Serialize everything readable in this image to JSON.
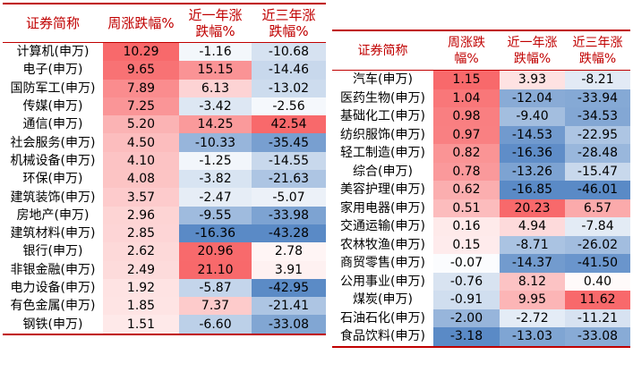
{
  "left_table": {
    "headers": [
      "证券简称",
      "周涨跌幅%",
      "近一年涨\n跌幅%",
      "近三年涨\n跌幅%"
    ],
    "rows": [
      [
        "计算机(申万)",
        "10.29",
        "-1.16",
        "-10.68"
      ],
      [
        "电子(申万)",
        "9.65",
        "15.15",
        "-14.46"
      ],
      [
        "国防军工(申万)",
        "7.89",
        "6.13",
        "-13.02"
      ],
      [
        "传媒(申万)",
        "7.25",
        "-3.42",
        "-2.56"
      ],
      [
        "通信(申万)",
        "5.20",
        "14.25",
        "42.54"
      ],
      [
        "社会服务(申万)",
        "4.50",
        "-10.33",
        "-35.45"
      ],
      [
        "机械设备(申万)",
        "4.10",
        "-1.25",
        "-14.55"
      ],
      [
        "环保(申万)",
        "4.08",
        "-3.82",
        "-21.63"
      ],
      [
        "建筑装饰(申万)",
        "3.57",
        "-2.47",
        "-5.07"
      ],
      [
        "房地产(申万)",
        "2.96",
        "-9.55",
        "-33.98"
      ],
      [
        "建筑材料(申万)",
        "2.85",
        "-16.36",
        "-43.28"
      ],
      [
        "银行(申万)",
        "2.62",
        "20.96",
        "2.78"
      ],
      [
        "非银金融(申万)",
        "2.49",
        "21.10",
        "3.91"
      ],
      [
        "电力设备(申万)",
        "1.92",
        "-5.87",
        "-42.95"
      ],
      [
        "有色金属(申万)",
        "1.85",
        "7.37",
        "-21.41"
      ],
      [
        "钢铁(申万)",
        "1.51",
        "-6.60",
        "-33.08"
      ]
    ]
  },
  "right_table": {
    "headers": [
      "证券简称",
      "周涨跌\n幅%",
      "近一年涨\n跌幅%",
      "近三年涨\n跌幅%"
    ],
    "rows": [
      [
        "汽车(申万)",
        "1.15",
        "3.93",
        "-8.21"
      ],
      [
        "医药生物(申万)",
        "1.04",
        "-12.04",
        "-33.94"
      ],
      [
        "基础化工(申万)",
        "0.98",
        "-9.40",
        "-34.53"
      ],
      [
        "纺织服饰(申万)",
        "0.97",
        "-14.53",
        "-22.95"
      ],
      [
        "轻工制造(申万)",
        "0.82",
        "-16.36",
        "-28.48"
      ],
      [
        "综合(申万)",
        "0.78",
        "-13.26",
        "-15.47"
      ],
      [
        "美容护理(申万)",
        "0.62",
        "-16.85",
        "-46.01"
      ],
      [
        "家用电器(申万)",
        "0.51",
        "20.23",
        "6.57"
      ],
      [
        "交通运输(申万)",
        "0.16",
        "4.94",
        "-7.84"
      ],
      [
        "农林牧渔(申万)",
        "0.15",
        "-8.71",
        "-26.02"
      ],
      [
        "商贸零售(申万)",
        "-0.07",
        "-14.37",
        "-41.50"
      ],
      [
        "公用事业(申万)",
        "-0.76",
        "8.12",
        "0.40"
      ],
      [
        "煤炭(申万)",
        "-0.91",
        "9.95",
        "11.62"
      ],
      [
        "石油石化(申万)",
        "-2.00",
        "-2.72",
        "-11.21"
      ],
      [
        "食品饮料(申万)",
        "-3.18",
        "-13.03",
        "-33.08"
      ]
    ]
  },
  "colors": {
    "header_text": "#c00000",
    "rule": "#c00000",
    "positive_max": "#f8696b",
    "neutral": "#ffffff",
    "negative_max": "#5a8ac6"
  }
}
